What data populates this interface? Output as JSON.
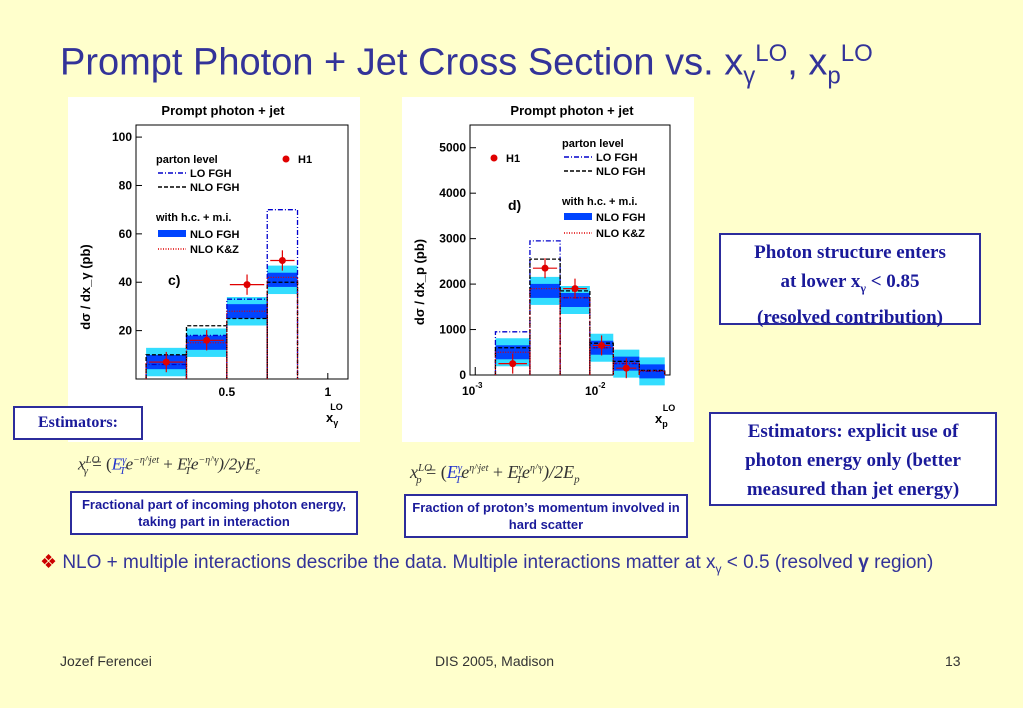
{
  "title": {
    "main": "Prompt Photon + Jet Cross Section vs. x",
    "gamma": "γ",
    "lo1": "LO",
    "sep": ", x",
    "p": "p",
    "lo2": "LO"
  },
  "plot_left": {
    "header": "Prompt photon + jet",
    "ylabel": "dσ / dx_γ (pb)",
    "xlabel_main": "x",
    "xlabel_sub": "γ",
    "xlabel_sup": "LO",
    "panel_label": "c)",
    "legend": {
      "parton": "parton level",
      "lo": "LO FGH",
      "nlo": "NLO FGH",
      "with": "with h.c. + m.i.",
      "nlo_fgh": "NLO FGH",
      "nlo_kz": "NLO K&Z",
      "h1": "H1"
    },
    "yticks": [
      "20",
      "40",
      "60",
      "80",
      "100"
    ],
    "xticks": [
      "0.5",
      "1"
    ]
  },
  "plot_right": {
    "header": "Prompt photon + jet",
    "ylabel": "dσ / dx_p (pb)",
    "xlabel_main": "x",
    "xlabel_sub": "p",
    "xlabel_sup": "LO",
    "panel_label": "d)",
    "legend": {
      "parton": "parton level",
      "lo": "LO FGH",
      "nlo": "NLO FGH",
      "with": "with h.c. + m.i.",
      "nlo_fgh": "NLO FGH",
      "nlo_kz": "NLO K&Z",
      "h1": "H1"
    },
    "yticks": [
      "0",
      "1000",
      "2000",
      "3000",
      "4000",
      "5000"
    ],
    "xt1": "10",
    "xt1e": "-3",
    "xt2": "10",
    "xt2e": "-2"
  },
  "chart_data": [
    {
      "type": "bar",
      "title": "Prompt photon + jet",
      "ylabel": "dσ / dx_γ (pb)",
      "xlabel": "x_γ^LO",
      "ylim": [
        0,
        100
      ],
      "bins": [
        [
          0.1,
          0.3
        ],
        [
          0.3,
          0.5
        ],
        [
          0.5,
          0.7
        ],
        [
          0.7,
          0.85
        ]
      ],
      "series": [
        {
          "name": "LO FGH",
          "values": [
            6,
            18,
            33,
            70
          ]
        },
        {
          "name": "NLO FGH",
          "values": [
            10,
            22,
            25,
            40
          ]
        },
        {
          "name": "NLO FGH",
          "values": [
            7,
            15,
            28,
            41
          ]
        },
        {
          "name": "NLO K&Z",
          "values": [
            7,
            15,
            28,
            42
          ]
        },
        {
          "name": "H1",
          "values": [
            7,
            16,
            39,
            49
          ]
        }
      ]
    },
    {
      "type": "bar",
      "title": "Prompt photon + jet",
      "ylabel": "dσ / dx_p (pb)",
      "xlabel": "x_p^LO",
      "ylim": [
        0,
        5500
      ],
      "bins": [
        [
          0.0015,
          0.003
        ],
        [
          0.003,
          0.0055
        ],
        [
          0.0055,
          0.01
        ],
        [
          0.01,
          0.016
        ],
        [
          0.016,
          0.027
        ],
        [
          0.027,
          0.045
        ]
      ],
      "series": [
        {
          "name": "LO FGH",
          "values": [
            950,
            2950,
            1700,
            600,
            250,
            80
          ]
        },
        {
          "name": "NLO FGH",
          "values": [
            600,
            2550,
            1850,
            700,
            300,
            100
          ]
        },
        {
          "name": "NLO FGH",
          "values": [
            500,
            1850,
            1650,
            600,
            250,
            80
          ]
        },
        {
          "name": "NLO K&Z",
          "values": [
            500,
            1900,
            1700,
            600,
            260,
            90
          ]
        },
        {
          "name": "H1",
          "values": [
            250,
            2350,
            1900,
            650,
            150,
            null
          ]
        }
      ]
    }
  ],
  "formula_left": {
    "x": "x",
    "sup": "LO",
    "sub": "γ",
    "eq": " = (",
    "E1": "E",
    "E1sup": "γ",
    "E1sub": "T",
    "exp1": "e",
    "exp1sup": "−η^jet",
    "plus": " + ",
    "E2": "E",
    "E2sup": "γ",
    "E2sub": "T",
    "exp2": "e",
    "exp2sup": "−η^γ",
    "tail": ")/2yE",
    "tailsub": "e"
  },
  "formula_right": {
    "x": "x",
    "sup": "LO",
    "sub": "p",
    "eq": " = (",
    "E1": "E",
    "E1sup": "γ",
    "E1sub": "T",
    "exp1": "e",
    "exp1sup": "η^jet",
    "plus": " + ",
    "E2": "E",
    "E2sup": "γ",
    "E2sub": "T",
    "exp2": "e",
    "exp2sup": "η^γ",
    "tail": ")/2E",
    "tailsub": "p"
  },
  "estimators_label": "Estimators:",
  "caption_left": "Fractional part of incoming photon energy, taking part in interaction",
  "caption_right": "Fraction of proton’s momentum involved in hard scatter",
  "box_photon": {
    "line1": "Photon structure enters",
    "line2a": "at lower x",
    "line2sub": "γ",
    "line2b": " < 0.85",
    "line3": "(resolved contribution)"
  },
  "box_estimators": "Estimators: explicit use of photon energy only (better measured than jet energy)",
  "bullet": {
    "mark": "❖",
    "text1": " NLO + multiple interactions describe the data. Multiple interactions matter at x",
    "sub": "γ",
    "text2": " < 0.5 (resolved ",
    "gamma": "γ",
    "text3": " region)"
  },
  "footer": {
    "author": "Jozef Ferencei",
    "conference": "DIS 2005, Madison",
    "page": "13"
  },
  "colors": {
    "title": "#333399",
    "background": "#ffffcc",
    "h1": "#e00000",
    "nlo_band": "#0044ff",
    "lo": "#0000cc"
  }
}
